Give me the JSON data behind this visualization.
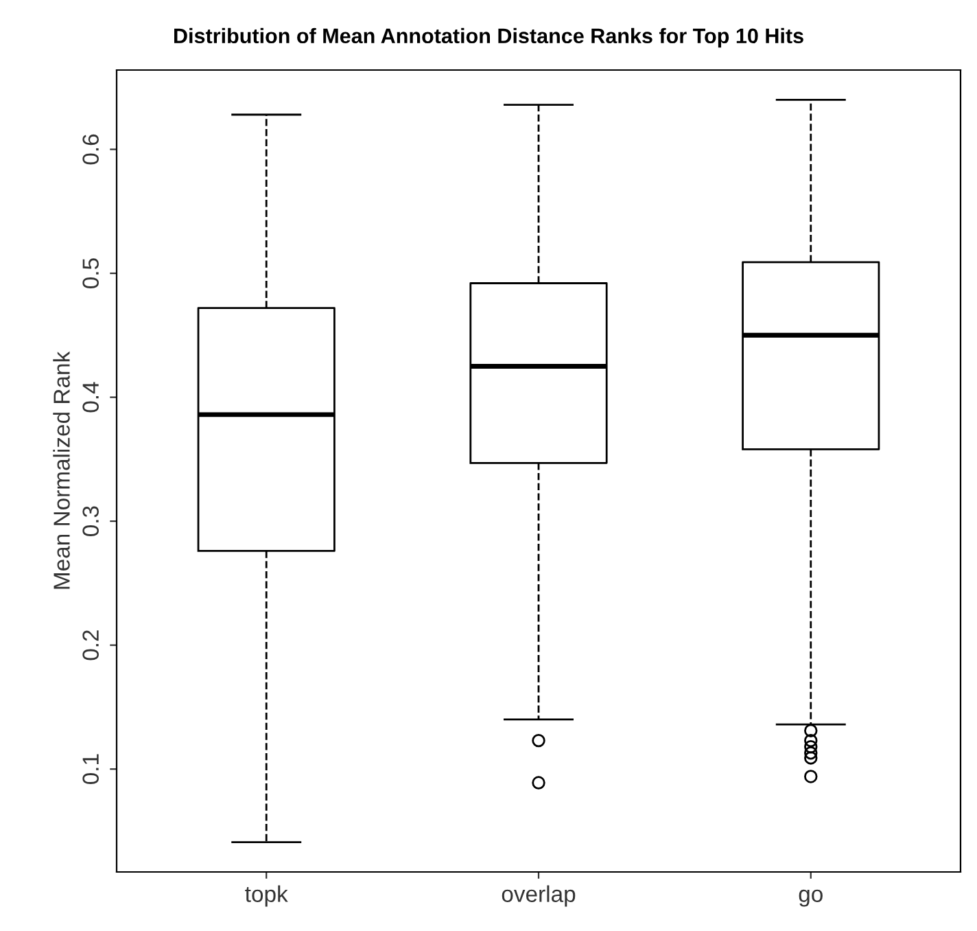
{
  "chart_data": {
    "type": "box",
    "title": "Distribution of Mean Annotation Distance Ranks for Top 10 Hits",
    "ylabel": "Mean Normalized Rank",
    "categories": [
      "topk",
      "overlap",
      "go"
    ],
    "boxes": [
      {
        "low": 0.041,
        "q1": 0.276,
        "median": 0.386,
        "q3": 0.472,
        "high": 0.628
      },
      {
        "low": 0.14,
        "q1": 0.347,
        "median": 0.425,
        "q3": 0.492,
        "high": 0.636,
        "outliers": [
          0.123,
          0.089
        ]
      },
      {
        "low": 0.136,
        "q1": 0.358,
        "median": 0.45,
        "q3": 0.509,
        "high": 0.64,
        "outliers": [
          0.131,
          0.123,
          0.118,
          0.113,
          0.109,
          0.094
        ]
      }
    ],
    "ylim": [
      0.017,
      0.664
    ],
    "yticks": [
      0.1,
      0.2,
      0.3,
      0.4,
      0.5,
      0.6
    ],
    "grid": false,
    "line_style": "dashed",
    "marker": "circle"
  }
}
